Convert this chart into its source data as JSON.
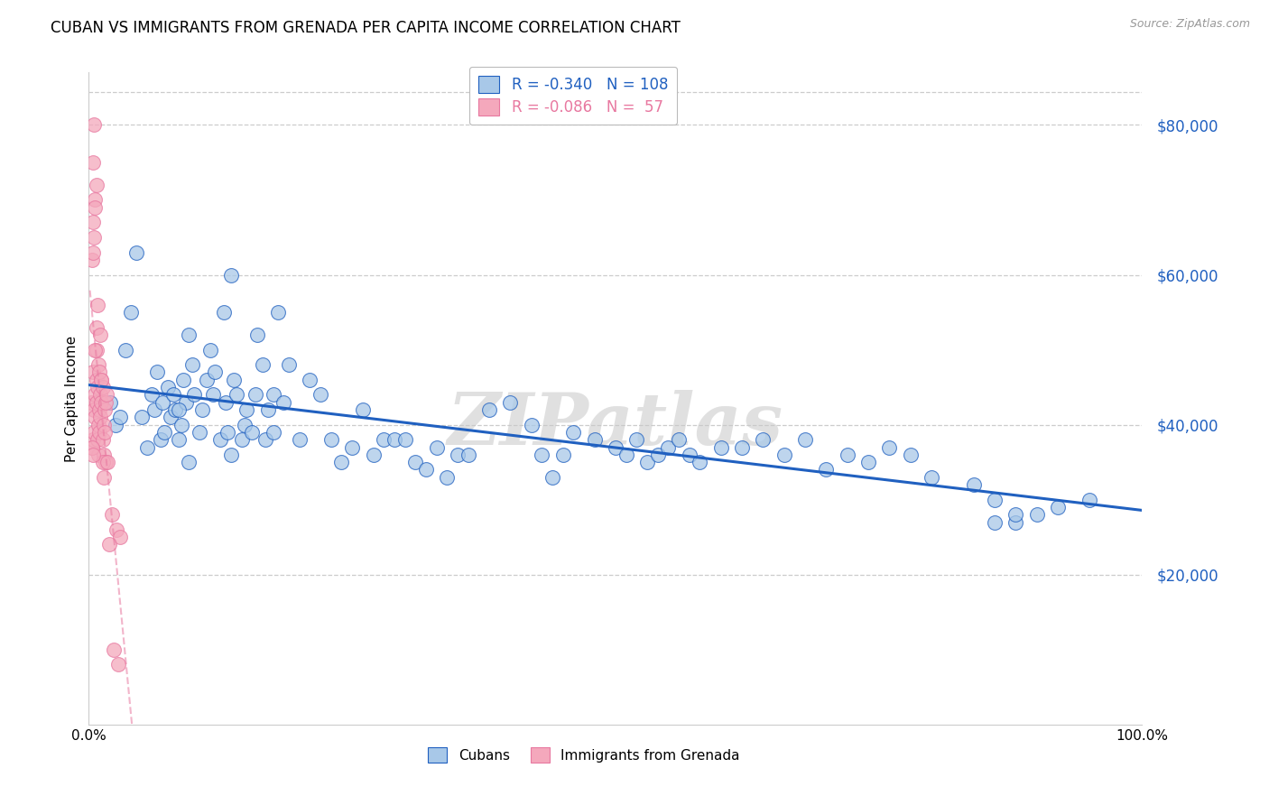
{
  "title": "CUBAN VS IMMIGRANTS FROM GRENADA PER CAPITA INCOME CORRELATION CHART",
  "source": "Source: ZipAtlas.com",
  "ylabel": "Per Capita Income",
  "ytick_labels": [
    "$20,000",
    "$40,000",
    "$60,000",
    "$80,000"
  ],
  "ytick_values": [
    20000,
    40000,
    60000,
    80000
  ],
  "ymin": 0,
  "ymax": 87000,
  "xmin": 0.0,
  "xmax": 1.0,
  "watermark": "ZIPatlas",
  "legend_label1": "Cubans",
  "legend_label2": "Immigrants from Grenada",
  "color_blue": "#A8C8E8",
  "color_pink": "#F4A8BC",
  "trendline_blue": "#2060C0",
  "trendline_pink": "#E878A0",
  "cubans_x": [
    0.02,
    0.025,
    0.03,
    0.035,
    0.04,
    0.045,
    0.05,
    0.055,
    0.06,
    0.062,
    0.065,
    0.068,
    0.07,
    0.072,
    0.075,
    0.078,
    0.08,
    0.082,
    0.085,
    0.088,
    0.09,
    0.092,
    0.095,
    0.098,
    0.1,
    0.105,
    0.108,
    0.112,
    0.115,
    0.118,
    0.12,
    0.125,
    0.128,
    0.13,
    0.132,
    0.135,
    0.138,
    0.14,
    0.145,
    0.148,
    0.15,
    0.155,
    0.158,
    0.16,
    0.165,
    0.168,
    0.17,
    0.175,
    0.18,
    0.185,
    0.19,
    0.2,
    0.21,
    0.22,
    0.23,
    0.24,
    0.25,
    0.26,
    0.27,
    0.28,
    0.29,
    0.3,
    0.31,
    0.32,
    0.33,
    0.34,
    0.35,
    0.36,
    0.38,
    0.4,
    0.42,
    0.43,
    0.44,
    0.45,
    0.46,
    0.48,
    0.5,
    0.51,
    0.52,
    0.53,
    0.54,
    0.55,
    0.56,
    0.57,
    0.58,
    0.6,
    0.62,
    0.64,
    0.66,
    0.68,
    0.7,
    0.72,
    0.74,
    0.76,
    0.78,
    0.8,
    0.84,
    0.86,
    0.88,
    0.9,
    0.92,
    0.95,
    0.86,
    0.88,
    0.085,
    0.095,
    0.175,
    0.135
  ],
  "cubans_y": [
    43000,
    40000,
    41000,
    50000,
    55000,
    63000,
    41000,
    37000,
    44000,
    42000,
    47000,
    38000,
    43000,
    39000,
    45000,
    41000,
    44000,
    42000,
    38000,
    40000,
    46000,
    43000,
    52000,
    48000,
    44000,
    39000,
    42000,
    46000,
    50000,
    44000,
    47000,
    38000,
    55000,
    43000,
    39000,
    60000,
    46000,
    44000,
    38000,
    40000,
    42000,
    39000,
    44000,
    52000,
    48000,
    38000,
    42000,
    44000,
    55000,
    43000,
    48000,
    38000,
    46000,
    44000,
    38000,
    35000,
    37000,
    42000,
    36000,
    38000,
    38000,
    38000,
    35000,
    34000,
    37000,
    33000,
    36000,
    36000,
    42000,
    43000,
    40000,
    36000,
    33000,
    36000,
    39000,
    38000,
    37000,
    36000,
    38000,
    35000,
    36000,
    37000,
    38000,
    36000,
    35000,
    37000,
    37000,
    38000,
    36000,
    38000,
    34000,
    36000,
    35000,
    37000,
    36000,
    33000,
    32000,
    30000,
    27000,
    28000,
    29000,
    30000,
    27000,
    28000,
    42000,
    35000,
    39000,
    36000
  ],
  "grenada_x": [
    0.002,
    0.003,
    0.004,
    0.004,
    0.005,
    0.005,
    0.006,
    0.006,
    0.007,
    0.007,
    0.007,
    0.008,
    0.008,
    0.009,
    0.009,
    0.01,
    0.01,
    0.011,
    0.011,
    0.012,
    0.012,
    0.013,
    0.013,
    0.014,
    0.014,
    0.015,
    0.015,
    0.016,
    0.016,
    0.017,
    0.003,
    0.004,
    0.005,
    0.006,
    0.007,
    0.008,
    0.009,
    0.01,
    0.011,
    0.012,
    0.013,
    0.014,
    0.003,
    0.004,
    0.018,
    0.022,
    0.026,
    0.03,
    0.004,
    0.006,
    0.007,
    0.019,
    0.024,
    0.028,
    0.004,
    0.005,
    0.006
  ],
  "grenada_y": [
    43000,
    37000,
    38000,
    47000,
    42000,
    39000,
    44000,
    41000,
    46000,
    43000,
    50000,
    38000,
    45000,
    40000,
    36000,
    42000,
    39000,
    44000,
    41000,
    46000,
    43000,
    38000,
    45000,
    40000,
    36000,
    42000,
    39000,
    35000,
    43000,
    44000,
    62000,
    63000,
    65000,
    50000,
    53000,
    56000,
    48000,
    47000,
    52000,
    46000,
    35000,
    33000,
    37000,
    36000,
    35000,
    28000,
    26000,
    25000,
    67000,
    70000,
    72000,
    24000,
    10000,
    8000,
    75000,
    80000,
    69000
  ]
}
